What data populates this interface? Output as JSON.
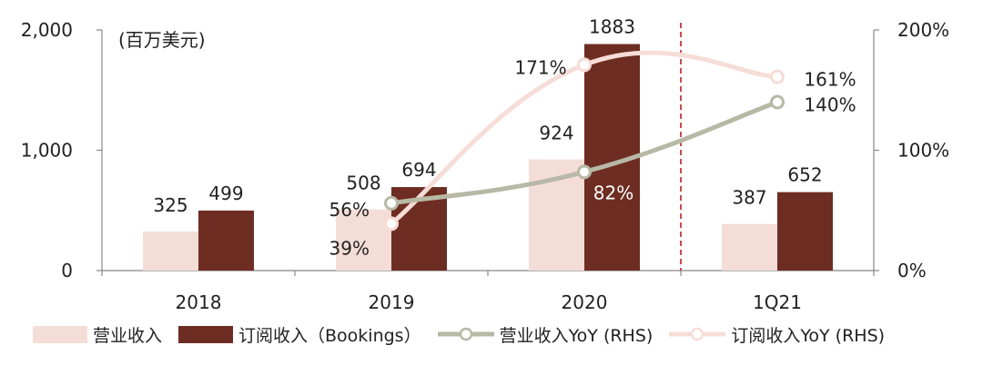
{
  "chart_data": {
    "type": "bar",
    "categories": [
      "2018",
      "2019",
      "2020",
      "1Q21"
    ],
    "unit_label": "(百万美元)",
    "y_left": {
      "ticks": [
        "0",
        "1,000",
        "2,000"
      ],
      "ylim": [
        0,
        2000
      ]
    },
    "y_right": {
      "ticks": [
        "0%",
        "100%",
        "200%"
      ],
      "ylim": [
        0,
        200
      ]
    },
    "series": [
      {
        "name": "营业收入",
        "kind": "bar",
        "axis": "left",
        "color": "#f5ddd7",
        "values": [
          325,
          508,
          924,
          387
        ],
        "labels": [
          "325",
          "508",
          "924",
          "387"
        ]
      },
      {
        "name": "订阅收入（Bookings）",
        "kind": "bar",
        "axis": "left",
        "color": "#6e2d22",
        "values": [
          499,
          694,
          1883,
          652
        ],
        "labels": [
          "499",
          "694",
          "1883",
          "652"
        ]
      },
      {
        "name": "营业收入YoY (RHS)",
        "kind": "line",
        "axis": "right",
        "color": "#b8b8a6",
        "values": [
          null,
          56,
          82,
          140
        ],
        "labels": [
          "",
          "56%",
          "82%",
          "140%"
        ]
      },
      {
        "name": "订阅收入YoY (RHS)",
        "kind": "line",
        "axis": "right",
        "color": "#f6ddd7",
        "values": [
          null,
          39,
          171,
          161
        ],
        "labels": [
          "",
          "39%",
          "171%",
          "161%"
        ]
      }
    ],
    "divider_after_category": "2020",
    "divider_color": "#c0504d",
    "grid": false,
    "legend_position": "bottom"
  }
}
